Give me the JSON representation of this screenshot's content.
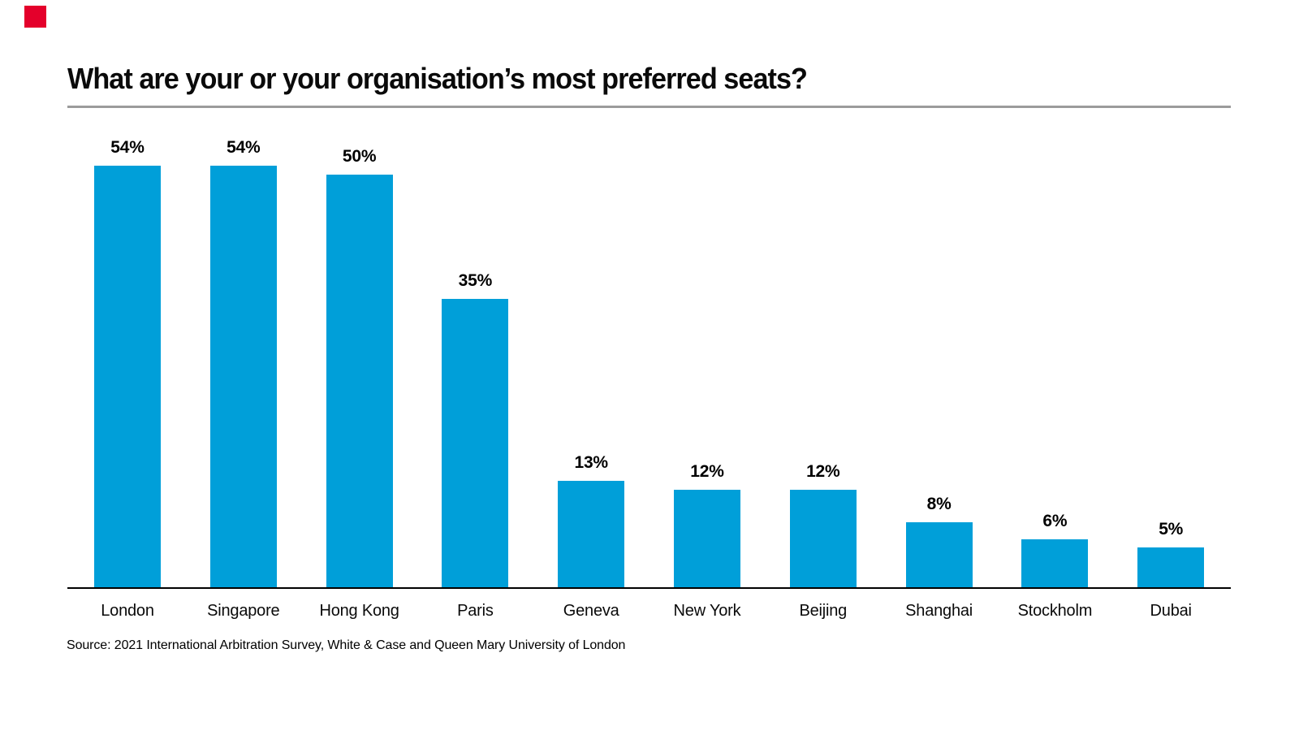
{
  "brand": {
    "square_color": "#e4002b"
  },
  "title": "What are your or your organisation’s most preferred seats?",
  "source": "Source: 2021 International Arbitration Survey, White & Case and Queen Mary University of London",
  "chart_data": {
    "type": "bar",
    "title": "What are your or your organisation’s most preferred seats?",
    "categories": [
      "London",
      "Singapore",
      "Hong Kong",
      "Paris",
      "Geneva",
      "New York",
      "Beijing",
      "Shanghai",
      "Stockholm",
      "Dubai"
    ],
    "values": [
      54,
      54,
      50,
      35,
      13,
      12,
      12,
      8,
      6,
      5
    ],
    "value_labels": [
      "54%",
      "54%",
      "50%",
      "35%",
      "13%",
      "12%",
      "12%",
      "8%",
      "6%",
      "5%"
    ],
    "xlabel": "",
    "ylabel": "",
    "ylim": [
      0,
      60
    ],
    "bar_color": "#009fd9",
    "grid": false,
    "legend": false,
    "value_labels_position": "above-bars",
    "axis_line_color": "#000000"
  }
}
